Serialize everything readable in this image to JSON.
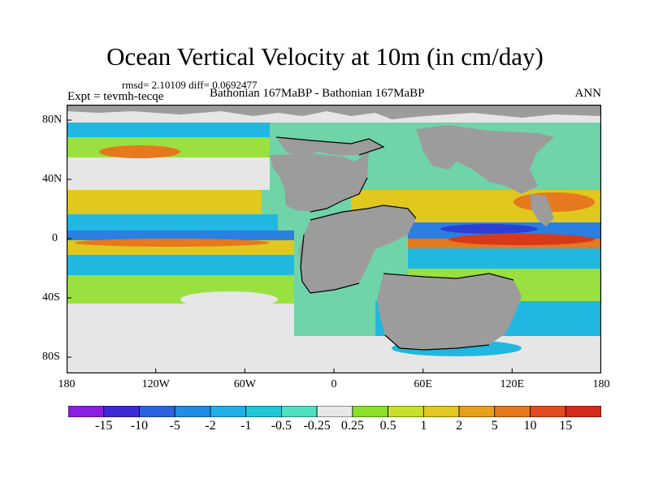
{
  "title": "Ocean Vertical Velocity at 10m (in cm/day)",
  "stats": "rmsd= 2.10109 diff= 0.0692477",
  "expt": "Expt = tevmh-tecqe",
  "period": "Bathonian 167MaBP - Bathonian 167MaBP",
  "season": "ANN",
  "x_ticks": [
    "180",
    "120W",
    "60W",
    "0",
    "60E",
    "120E",
    "180"
  ],
  "y_ticks": [
    "80N",
    "40N",
    "0",
    "40S",
    "80S"
  ],
  "colorbar": {
    "labels": [
      "-15",
      "-10",
      "-5",
      "-2",
      "-1",
      "-0.5",
      "-0.25",
      "0.25",
      "0.5",
      "1",
      "2",
      "5",
      "10",
      "15"
    ],
    "colors": [
      "#8a1de0",
      "#3c2ad6",
      "#2b62e0",
      "#1f8de6",
      "#20aee6",
      "#1fc8d8",
      "#4fe0c0",
      "#e8e8e8",
      "#8ae02a",
      "#c8e02a",
      "#e0c81e",
      "#e6a01e",
      "#e6781e",
      "#e04a1e",
      "#d62a1a"
    ]
  },
  "map_colors": {
    "land": "#9c9c9c",
    "ocean": "#6fd4a8",
    "neutral": "#e6e6e6",
    "pos_low": "#9ae040",
    "pos_mid": "#e0c81e",
    "pos_high": "#e6781e",
    "pos_max": "#d63a1a",
    "neg_low": "#20b8e0",
    "neg_mid": "#2b7fe0",
    "neg_high": "#2c3fd2"
  }
}
